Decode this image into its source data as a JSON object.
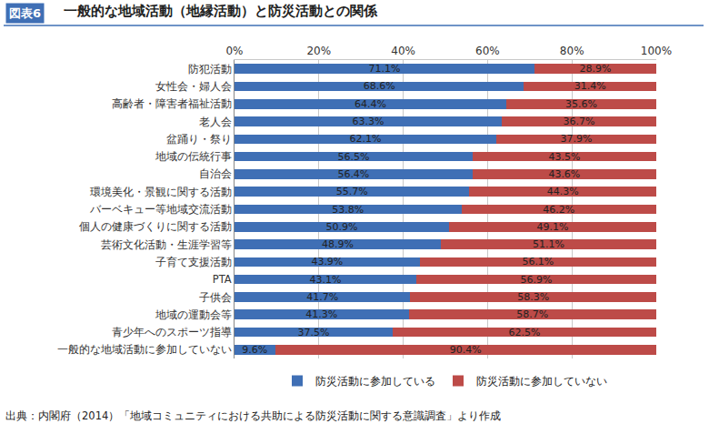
{
  "chart_data": {
    "type": "bar",
    "orientation": "horizontal",
    "stacked": true,
    "data_labels": true,
    "grid": true,
    "legend": "bottom",
    "title": "一般的な地域活動（地縁活動）と防災活動との関係",
    "annotations": [
      "図表6"
    ],
    "source": "出典：内閣府（2014）「地域コミュニティにおける共助による防災活動に関する意識調査」より作成",
    "categories": [
      "防犯活動",
      "女性会・婦人会",
      "高齢者・障害者福祉活動",
      "老人会",
      "盆踊り・祭り",
      "地域の伝統行事",
      "自治会",
      "環境美化・景観に関する活動",
      "バーベキュー等地域交流活動",
      "個人の健康づくりに関する活動",
      "芸術文化活動・生涯学習等",
      "子育て支援活動",
      "PTA",
      "子供会",
      "地域の運動会等",
      "青少年へのスポーツ指導",
      "一般的な地域活動に参加していない"
    ],
    "series": [
      {
        "name": "防災活動に参加している",
        "color": "#3f6fb5",
        "values": [
          71.1,
          68.6,
          64.4,
          63.3,
          62.1,
          56.5,
          56.4,
          55.7,
          53.8,
          50.9,
          48.9,
          43.9,
          43.1,
          41.7,
          41.3,
          37.5,
          9.6
        ],
        "value_labels": [
          "71.1%",
          "68.6%",
          "64.4%",
          "63.3%",
          "62.1%",
          "56.5%",
          "56.4%",
          "55.7%",
          "53.8%",
          "50.9%",
          "48.9%",
          "43.9%",
          "43.1%",
          "41.7%",
          "41.3%",
          "37.5%",
          "9.6%"
        ]
      },
      {
        "name": "防災活動に参加していない",
        "color": "#bd4b48",
        "values": [
          28.9,
          31.4,
          35.6,
          36.7,
          37.9,
          43.5,
          43.6,
          44.3,
          46.2,
          49.1,
          51.1,
          56.1,
          56.9,
          58.3,
          58.7,
          62.5,
          90.4
        ],
        "value_labels": [
          "28.9%",
          "31.4%",
          "35.6%",
          "36.7%",
          "37.9%",
          "43.5%",
          "43.6%",
          "44.3%",
          "46.2%",
          "49.1%",
          "51.1%",
          "56.1%",
          "56.9%",
          "58.3%",
          "58.7%",
          "62.5%",
          "90.4%"
        ]
      }
    ],
    "xlim": [
      0,
      100
    ],
    "xticks": [
      {
        "value": 0,
        "label": "0%"
      },
      {
        "value": 20,
        "label": "20%"
      },
      {
        "value": 40,
        "label": "40%"
      },
      {
        "value": 60,
        "label": "60%"
      },
      {
        "value": 80,
        "label": "80%"
      },
      {
        "value": 100,
        "label": "100%"
      }
    ]
  }
}
